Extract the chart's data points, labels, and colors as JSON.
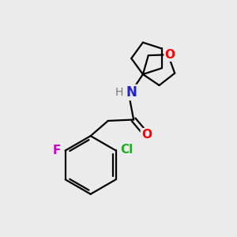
{
  "background_color": "#ebebeb",
  "bond_color": "#000000",
  "atom_colors": {
    "O": "#ff0000",
    "N": "#2222cc",
    "F": "#cc00cc",
    "Cl": "#22aa22",
    "H": "#777777",
    "C": "#000000"
  },
  "figsize": [
    3.0,
    3.0
  ],
  "dpi": 100,
  "lw": 1.6
}
